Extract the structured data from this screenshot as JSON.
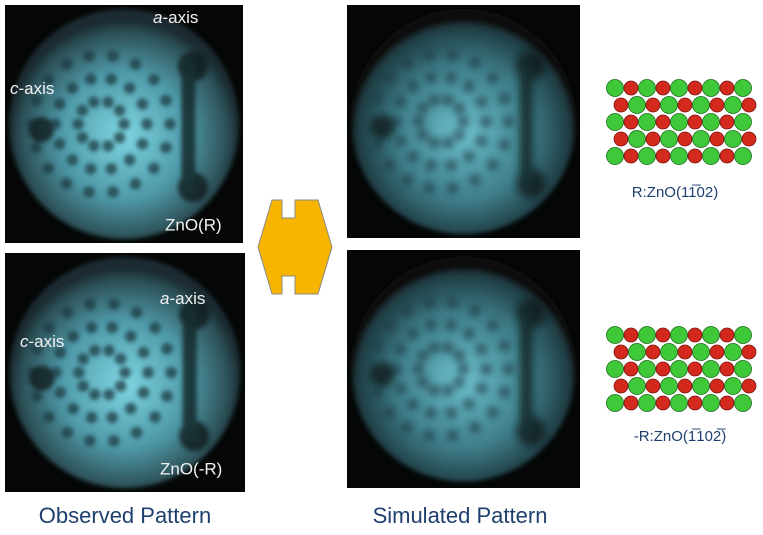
{
  "panels": {
    "observed_r": {
      "a_label": {
        "letter": "a",
        "suffix": "-axis"
      },
      "c_label": {
        "letter": "c",
        "suffix": "-axis"
      },
      "name": "ZnO(R)"
    },
    "observed_minus_r": {
      "a_label": {
        "letter": "a",
        "suffix": "-axis"
      },
      "c_label": {
        "letter": "c",
        "suffix": "-axis"
      },
      "name": "ZnO(-R)"
    }
  },
  "structures": {
    "top": "R:ZnO(11̅02)",
    "bottom": "-R:ZnO(1̅102̅)"
  },
  "captions": {
    "observed": "Observed Pattern",
    "simulated": "Simulated Pattern"
  }
}
